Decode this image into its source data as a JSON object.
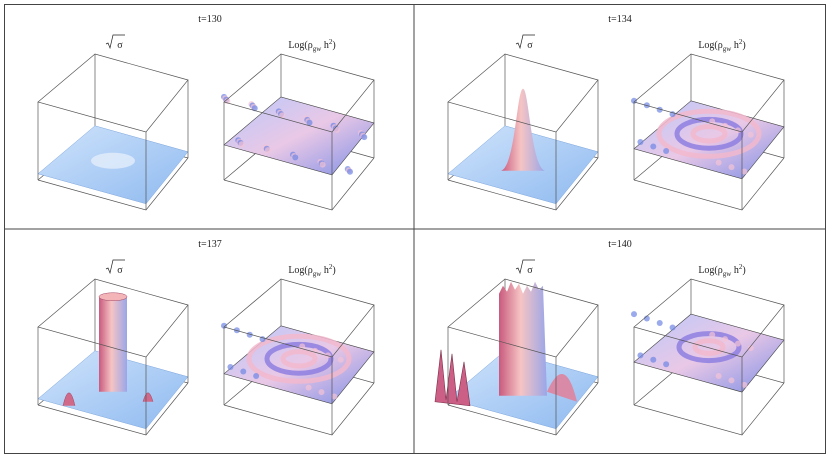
{
  "panels": [
    {
      "title": "t=130",
      "plots": [
        {
          "label": [
            "σ"
          ]
        },
        {
          "label": [
            "Log(ρ",
            "gw",
            " h",
            "2",
            ")"
          ]
        }
      ]
    },
    {
      "title": "t=134",
      "plots": [
        {
          "label": [
            "σ"
          ]
        },
        {
          "label": [
            "Log(ρ",
            "gw",
            " h",
            "2",
            ")"
          ]
        }
      ]
    },
    {
      "title": "t=137",
      "plots": [
        {
          "label": [
            "σ"
          ]
        },
        {
          "label": [
            "Log(ρ",
            "gw",
            " h",
            "2",
            ")"
          ]
        }
      ]
    },
    {
      "title": "t=140",
      "plots": [
        {
          "label": [
            "σ"
          ]
        },
        {
          "label": [
            "Log(ρ",
            "gw",
            " h",
            "2",
            ")"
          ]
        }
      ]
    }
  ]
}
